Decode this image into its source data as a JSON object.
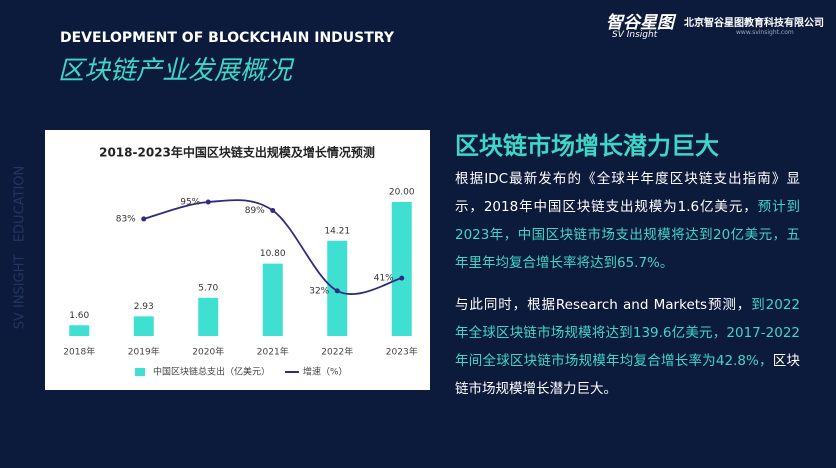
{
  "header": {
    "title_en": "DEVELOPMENT OF BLOCKCHAIN INDUSTRY",
    "title_cn": "区块链产业发展概况",
    "logo": "智谷星图",
    "logo_sub": "SV Insight",
    "company": "北京智谷星图教育科技有限公司",
    "url": "www.svinsight.com"
  },
  "side_text": "SV INSIGHT   EDUCATION",
  "chart_data": {
    "type": "bar",
    "title": "2018-2023年中国区块链支出规模及增长情况预测",
    "categories": [
      "2018年",
      "2019年",
      "2020年",
      "2021年",
      "2022年",
      "2023年"
    ],
    "series": [
      {
        "name": "中国区块链总支出（亿美元）",
        "color": "#3fe0d2",
        "values": [
          1.6,
          2.93,
          5.7,
          10.8,
          14.21,
          20.0
        ],
        "value_labels": [
          "1.60",
          "2.93",
          "5.70",
          "10.80",
          "14.21",
          "20.00"
        ]
      },
      {
        "name": "增速（%）",
        "type": "line",
        "axis": "y2",
        "color": "#2e2c7e",
        "values": [
          null,
          83,
          95,
          89,
          32,
          41
        ],
        "value_labels": [
          null,
          "83%",
          "95%",
          "89%",
          "32%",
          "41%"
        ]
      }
    ],
    "ylim": [
      0,
      20
    ],
    "y2lim": [
      0,
      95
    ],
    "legend": "bottom"
  },
  "article": {
    "heading": "区块链市场增长潜力巨大",
    "paragraphs": [
      [
        {
          "text": "根据IDC最新发布的《全球半年度区块链支出指南》显示，2018年中国区块链支出规模为1.6亿美元，",
          "color": "#ffffff"
        },
        {
          "text": "预计到2023年，中国区块链市场支出规模将达到20亿美元，五年里年均复合增长率将达到65.7%。",
          "color": "#3fd6c6"
        }
      ],
      [
        {
          "text": "与此同时，根据Research and Markets预测，",
          "color": "#ffffff"
        },
        {
          "text": "到2022年全球区块链市场规模将达到139.6亿美元，2017-2022年间全球区块链市场规模年均复合增长率为42.8%，",
          "color": "#3fd6c6"
        },
        {
          "text": "区块链市场规模增长潜力巨大。",
          "color": "#ffffff"
        }
      ]
    ]
  }
}
